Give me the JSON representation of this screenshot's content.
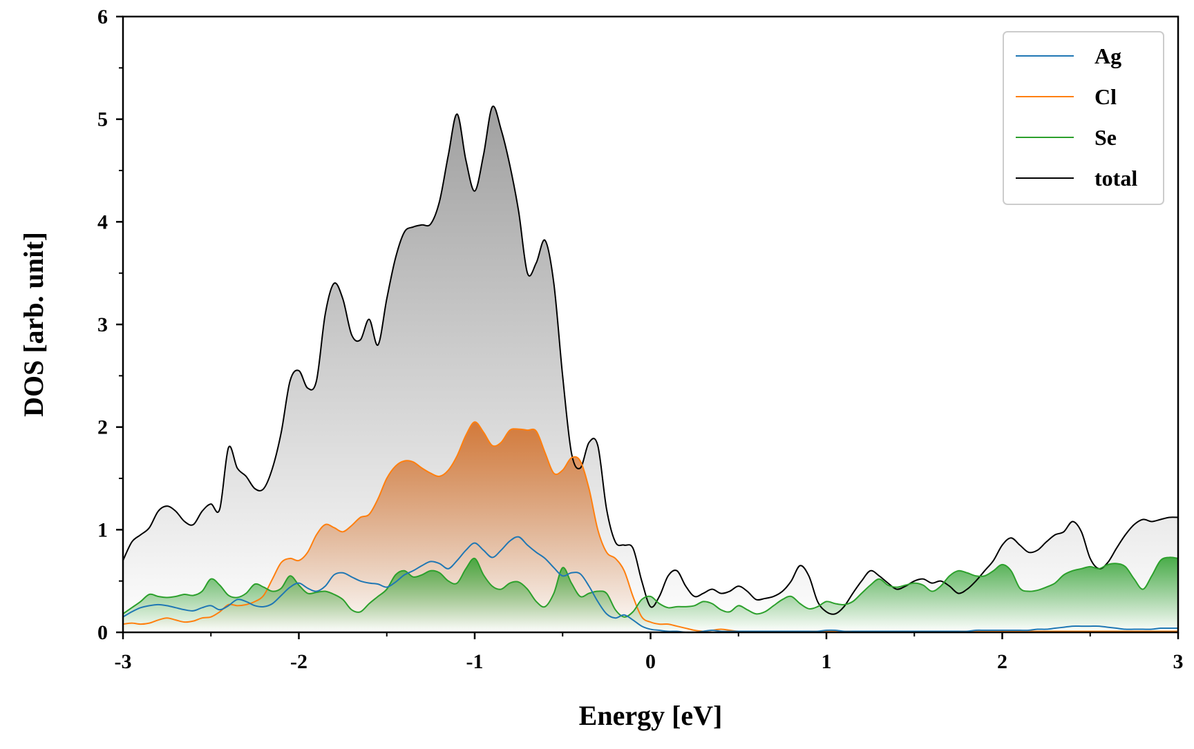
{
  "chart_data": {
    "type": "line",
    "xlabel": "Energy [eV]",
    "ylabel": "DOS [arb. unit]",
    "xlim": [
      -3,
      3
    ],
    "ylim": [
      0,
      6
    ],
    "xticks": [
      -3,
      -2,
      -1,
      0,
      1,
      2,
      3
    ],
    "xtick_labels": [
      "-3",
      "-2",
      "-1",
      "0",
      "1",
      "2",
      "3"
    ],
    "yticks": [
      0,
      1,
      2,
      3,
      4,
      5,
      6
    ],
    "ytick_labels": [
      "0",
      "1",
      "2",
      "3",
      "4",
      "5",
      "6"
    ],
    "legend_position": "top-right",
    "grid": false,
    "x": [
      -3.0,
      -2.95,
      -2.9,
      -2.85,
      -2.8,
      -2.75,
      -2.7,
      -2.65,
      -2.6,
      -2.55,
      -2.5,
      -2.45,
      -2.4,
      -2.35,
      -2.3,
      -2.25,
      -2.2,
      -2.15,
      -2.1,
      -2.05,
      -2.0,
      -1.95,
      -1.9,
      -1.85,
      -1.8,
      -1.75,
      -1.7,
      -1.65,
      -1.6,
      -1.55,
      -1.5,
      -1.45,
      -1.4,
      -1.35,
      -1.3,
      -1.25,
      -1.2,
      -1.15,
      -1.1,
      -1.05,
      -1.0,
      -0.95,
      -0.9,
      -0.85,
      -0.8,
      -0.75,
      -0.7,
      -0.65,
      -0.6,
      -0.55,
      -0.5,
      -0.45,
      -0.4,
      -0.35,
      -0.3,
      -0.25,
      -0.2,
      -0.15,
      -0.1,
      -0.05,
      0.0,
      0.05,
      0.1,
      0.15,
      0.2,
      0.25,
      0.3,
      0.35,
      0.4,
      0.45,
      0.5,
      0.55,
      0.6,
      0.65,
      0.7,
      0.75,
      0.8,
      0.85,
      0.9,
      0.95,
      1.0,
      1.05,
      1.1,
      1.15,
      1.2,
      1.25,
      1.3,
      1.35,
      1.4,
      1.45,
      1.5,
      1.55,
      1.6,
      1.65,
      1.7,
      1.75,
      1.8,
      1.85,
      1.9,
      1.95,
      2.0,
      2.05,
      2.1,
      2.15,
      2.2,
      2.25,
      2.3,
      2.35,
      2.4,
      2.45,
      2.5,
      2.55,
      2.6,
      2.65,
      2.7,
      2.75,
      2.8,
      2.85,
      2.9,
      2.95,
      3.0
    ],
    "series": [
      {
        "name": "Ag",
        "color": "#1f77b4",
        "fill": false,
        "values": [
          0.15,
          0.2,
          0.24,
          0.26,
          0.27,
          0.26,
          0.24,
          0.22,
          0.21,
          0.24,
          0.26,
          0.22,
          0.26,
          0.32,
          0.3,
          0.26,
          0.25,
          0.28,
          0.36,
          0.44,
          0.48,
          0.43,
          0.4,
          0.45,
          0.56,
          0.58,
          0.54,
          0.5,
          0.48,
          0.47,
          0.44,
          0.49,
          0.56,
          0.6,
          0.65,
          0.69,
          0.67,
          0.62,
          0.7,
          0.8,
          0.87,
          0.8,
          0.73,
          0.8,
          0.89,
          0.93,
          0.85,
          0.78,
          0.72,
          0.63,
          0.55,
          0.58,
          0.57,
          0.45,
          0.3,
          0.18,
          0.14,
          0.17,
          0.12,
          0.06,
          0.03,
          0.02,
          0.01,
          0.01,
          0.0,
          0.0,
          0.01,
          0.02,
          0.01,
          0.01,
          0.01,
          0.01,
          0.01,
          0.01,
          0.01,
          0.01,
          0.01,
          0.01,
          0.01,
          0.01,
          0.02,
          0.02,
          0.01,
          0.01,
          0.01,
          0.01,
          0.01,
          0.01,
          0.01,
          0.01,
          0.01,
          0.01,
          0.01,
          0.01,
          0.01,
          0.01,
          0.01,
          0.02,
          0.02,
          0.02,
          0.02,
          0.02,
          0.02,
          0.02,
          0.03,
          0.03,
          0.04,
          0.05,
          0.06,
          0.06,
          0.06,
          0.06,
          0.05,
          0.04,
          0.03,
          0.03,
          0.03,
          0.03,
          0.04,
          0.04,
          0.04
        ]
      },
      {
        "name": "Cl",
        "color": "#ff7f0e",
        "fill": true,
        "fill_color": "#d2691e",
        "values": [
          0.08,
          0.09,
          0.08,
          0.09,
          0.12,
          0.14,
          0.12,
          0.1,
          0.11,
          0.14,
          0.15,
          0.2,
          0.27,
          0.26,
          0.27,
          0.3,
          0.36,
          0.52,
          0.68,
          0.72,
          0.7,
          0.78,
          0.95,
          1.05,
          1.02,
          0.98,
          1.04,
          1.12,
          1.15,
          1.3,
          1.5,
          1.62,
          1.67,
          1.66,
          1.6,
          1.55,
          1.52,
          1.58,
          1.72,
          1.92,
          2.05,
          1.95,
          1.82,
          1.85,
          1.97,
          1.98,
          1.97,
          1.96,
          1.75,
          1.55,
          1.58,
          1.7,
          1.67,
          1.4,
          1.0,
          0.78,
          0.72,
          0.6,
          0.35,
          0.15,
          0.1,
          0.08,
          0.08,
          0.06,
          0.04,
          0.02,
          0.01,
          0.02,
          0.03,
          0.02,
          0.01,
          0.01,
          0.01,
          0.01,
          0.01,
          0.01,
          0.01,
          0.01,
          0.01,
          0.01,
          0.01,
          0.01,
          0.01,
          0.01,
          0.01,
          0.01,
          0.01,
          0.01,
          0.01,
          0.01,
          0.01,
          0.01,
          0.01,
          0.01,
          0.01,
          0.01,
          0.01,
          0.01,
          0.01,
          0.01,
          0.01,
          0.01,
          0.01,
          0.01,
          0.01,
          0.01,
          0.01,
          0.01,
          0.01,
          0.01,
          0.01,
          0.01,
          0.01,
          0.01,
          0.01,
          0.01,
          0.01,
          0.01,
          0.01,
          0.01,
          0.01
        ]
      },
      {
        "name": "Se",
        "color": "#2ca02c",
        "fill": true,
        "fill_color": "#2ca02c",
        "values": [
          0.18,
          0.24,
          0.3,
          0.37,
          0.35,
          0.34,
          0.35,
          0.37,
          0.36,
          0.4,
          0.52,
          0.46,
          0.36,
          0.34,
          0.38,
          0.47,
          0.44,
          0.4,
          0.43,
          0.55,
          0.46,
          0.38,
          0.39,
          0.4,
          0.37,
          0.32,
          0.22,
          0.2,
          0.28,
          0.35,
          0.42,
          0.56,
          0.6,
          0.54,
          0.56,
          0.6,
          0.58,
          0.5,
          0.48,
          0.62,
          0.72,
          0.56,
          0.45,
          0.42,
          0.48,
          0.49,
          0.42,
          0.3,
          0.25,
          0.38,
          0.63,
          0.48,
          0.35,
          0.38,
          0.4,
          0.38,
          0.22,
          0.15,
          0.2,
          0.32,
          0.35,
          0.28,
          0.24,
          0.25,
          0.25,
          0.26,
          0.3,
          0.28,
          0.22,
          0.2,
          0.26,
          0.22,
          0.18,
          0.2,
          0.26,
          0.32,
          0.35,
          0.28,
          0.23,
          0.25,
          0.3,
          0.28,
          0.27,
          0.3,
          0.38,
          0.46,
          0.52,
          0.46,
          0.44,
          0.46,
          0.48,
          0.46,
          0.4,
          0.45,
          0.55,
          0.6,
          0.58,
          0.55,
          0.55,
          0.6,
          0.66,
          0.6,
          0.43,
          0.4,
          0.41,
          0.44,
          0.48,
          0.56,
          0.6,
          0.62,
          0.64,
          0.62,
          0.66,
          0.67,
          0.64,
          0.52,
          0.42,
          0.55,
          0.7,
          0.73,
          0.72
        ]
      },
      {
        "name": "total",
        "color": "#000000",
        "fill": true,
        "fill_color": "#808080",
        "values": [
          0.7,
          0.88,
          0.95,
          1.02,
          1.18,
          1.23,
          1.18,
          1.08,
          1.05,
          1.18,
          1.25,
          1.2,
          1.8,
          1.6,
          1.52,
          1.4,
          1.4,
          1.6,
          1.95,
          2.45,
          2.55,
          2.38,
          2.45,
          3.1,
          3.4,
          3.25,
          2.9,
          2.85,
          3.05,
          2.8,
          3.25,
          3.65,
          3.9,
          3.95,
          3.97,
          3.98,
          4.2,
          4.65,
          5.05,
          4.6,
          4.3,
          4.65,
          5.12,
          4.9,
          4.55,
          4.1,
          3.5,
          3.6,
          3.82,
          3.4,
          2.5,
          1.75,
          1.6,
          1.85,
          1.82,
          1.2,
          0.88,
          0.85,
          0.82,
          0.5,
          0.25,
          0.35,
          0.55,
          0.6,
          0.45,
          0.35,
          0.38,
          0.42,
          0.38,
          0.4,
          0.45,
          0.4,
          0.32,
          0.33,
          0.35,
          0.4,
          0.5,
          0.65,
          0.55,
          0.3,
          0.2,
          0.18,
          0.25,
          0.38,
          0.5,
          0.6,
          0.55,
          0.48,
          0.42,
          0.45,
          0.5,
          0.52,
          0.48,
          0.5,
          0.45,
          0.38,
          0.42,
          0.5,
          0.6,
          0.7,
          0.85,
          0.92,
          0.85,
          0.78,
          0.8,
          0.88,
          0.95,
          0.98,
          1.08,
          0.98,
          0.72,
          0.62,
          0.68,
          0.82,
          0.95,
          1.05,
          1.1,
          1.08,
          1.1,
          1.12,
          1.12
        ]
      }
    ]
  }
}
